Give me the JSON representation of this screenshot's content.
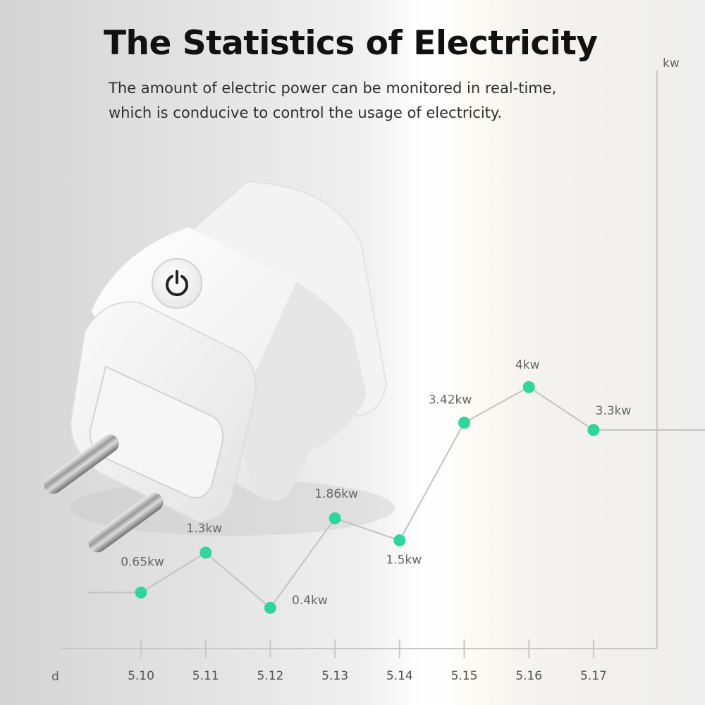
{
  "header": {
    "title": "The Statistics of Electricity",
    "subtitle_lines": [
      "The amount of electric power can be monitored in real-time,",
      "which is conducive to control the usage of electricity."
    ]
  },
  "chart_data": {
    "type": "line",
    "title": "",
    "xlabel": "d",
    "ylabel": "kw",
    "categories": [
      "5.10",
      "5.11",
      "5.12",
      "5.13",
      "5.14",
      "5.15",
      "5.16",
      "5.17"
    ],
    "series": [
      {
        "values": [
          0.65,
          1.3,
          0.4,
          1.86,
          1.5,
          3.42,
          4,
          3.3
        ],
        "data_labels": [
          "0.65kw",
          "1.3kw",
          "0.4kw",
          "1.86kw",
          "1.5kw",
          "3.42kw",
          "4kw",
          "3.3kw"
        ]
      }
    ],
    "ylim": [
      0,
      4.6
    ],
    "grid": false,
    "legend": "none",
    "colors": {
      "point": "#2ed69a",
      "line": "#c2c2c2",
      "axis": "#c8c8c8",
      "label": "#666666"
    }
  },
  "illustration": {
    "subject": "white smart plug with power button",
    "icon": "power-icon"
  }
}
